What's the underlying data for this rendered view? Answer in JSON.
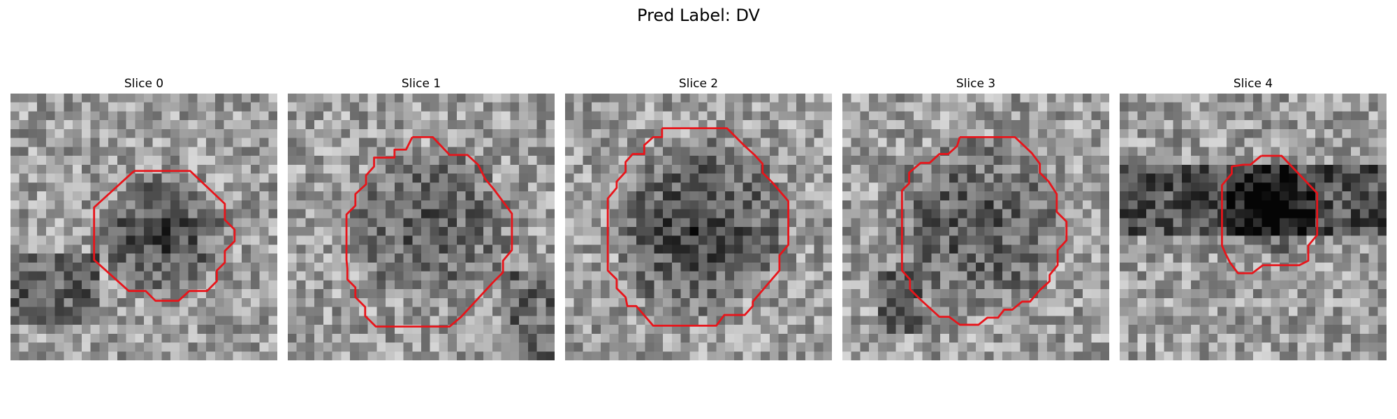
{
  "figure": {
    "title": "Pred Label: DV",
    "colors": {
      "contour": "#e8141a",
      "background": "#ffffff",
      "colormap": "gray"
    }
  },
  "slices": [
    {
      "title": "Slice 0",
      "contour": [
        [
          13.9,
          8.7
        ],
        [
          20.2,
          8.7
        ],
        [
          24.1,
          12.4
        ],
        [
          24.1,
          14.2
        ],
        [
          25.2,
          15.3
        ],
        [
          25.2,
          16.6
        ],
        [
          24.1,
          17.7
        ],
        [
          24.1,
          19.0
        ],
        [
          23.2,
          19.9
        ],
        [
          23.2,
          21.1
        ],
        [
          22.1,
          22.2
        ],
        [
          20.1,
          22.2
        ],
        [
          18.9,
          23.3
        ],
        [
          16.3,
          23.3
        ],
        [
          15.2,
          22.2
        ],
        [
          13.3,
          22.2
        ],
        [
          9.4,
          18.7
        ],
        [
          9.4,
          12.8
        ]
      ]
    },
    {
      "title": "Slice 1",
      "contour": [
        [
          14.0,
          4.9
        ],
        [
          16.3,
          4.9
        ],
        [
          18.2,
          6.9
        ],
        [
          20.2,
          6.9
        ],
        [
          21.4,
          8.0
        ],
        [
          22.2,
          9.6
        ],
        [
          23.2,
          10.8
        ],
        [
          25.2,
          13.5
        ],
        [
          25.2,
          17.6
        ],
        [
          24.2,
          18.8
        ],
        [
          24.2,
          20.1
        ],
        [
          23.1,
          21.2
        ],
        [
          19.5,
          25.1
        ],
        [
          18.2,
          26.2
        ],
        [
          9.9,
          26.2
        ],
        [
          8.7,
          25.0
        ],
        [
          8.7,
          24.0
        ],
        [
          7.6,
          22.9
        ],
        [
          7.6,
          21.8
        ],
        [
          6.7,
          20.9
        ],
        [
          6.7,
          19.7
        ],
        [
          6.6,
          18.7
        ],
        [
          6.6,
          13.6
        ],
        [
          7.6,
          12.6
        ],
        [
          7.6,
          11.3
        ],
        [
          8.8,
          10.2
        ],
        [
          8.8,
          9.2
        ],
        [
          9.7,
          8.2
        ],
        [
          9.7,
          7.2
        ],
        [
          12.0,
          7.2
        ],
        [
          12.0,
          6.3
        ],
        [
          13.3,
          6.3
        ]
      ]
    },
    {
      "title": "Slice 2",
      "contour": [
        [
          10.9,
          3.9
        ],
        [
          18.2,
          3.9
        ],
        [
          20.2,
          5.9
        ],
        [
          21.3,
          6.9
        ],
        [
          22.2,
          7.9
        ],
        [
          22.2,
          8.9
        ],
        [
          23.3,
          10.0
        ],
        [
          25.1,
          12.1
        ],
        [
          25.1,
          17.0
        ],
        [
          24.1,
          18.2
        ],
        [
          24.1,
          19.9
        ],
        [
          21.1,
          23.4
        ],
        [
          21.1,
          23.9
        ],
        [
          20.2,
          24.9
        ],
        [
          17.9,
          24.9
        ],
        [
          17.0,
          26.1
        ],
        [
          9.9,
          26.1
        ],
        [
          8.0,
          23.9
        ],
        [
          7.0,
          23.9
        ],
        [
          6.8,
          22.9
        ],
        [
          5.8,
          21.9
        ],
        [
          5.8,
          20.9
        ],
        [
          4.8,
          19.9
        ],
        [
          4.8,
          11.8
        ],
        [
          5.8,
          10.6
        ],
        [
          5.8,
          9.9
        ],
        [
          6.8,
          8.8
        ],
        [
          6.8,
          7.7
        ],
        [
          7.6,
          6.8
        ],
        [
          8.9,
          6.8
        ],
        [
          8.9,
          5.8
        ],
        [
          9.9,
          4.9
        ],
        [
          10.9,
          4.9
        ]
      ]
    },
    {
      "title": "Slice 3",
      "contour": [
        [
          13.2,
          4.9
        ],
        [
          19.4,
          4.9
        ],
        [
          21.3,
          6.7
        ],
        [
          22.2,
          7.9
        ],
        [
          22.2,
          8.9
        ],
        [
          23.2,
          9.9
        ],
        [
          24.1,
          11.3
        ],
        [
          24.1,
          13.3
        ],
        [
          25.2,
          14.4
        ],
        [
          25.2,
          16.5
        ],
        [
          24.2,
          17.6
        ],
        [
          24.2,
          19.3
        ],
        [
          23.3,
          20.4
        ],
        [
          23.3,
          21.1
        ],
        [
          22.2,
          22.1
        ],
        [
          21.1,
          23.4
        ],
        [
          20.2,
          23.4
        ],
        [
          19.1,
          24.3
        ],
        [
          18.2,
          24.3
        ],
        [
          17.5,
          25.2
        ],
        [
          16.3,
          25.2
        ],
        [
          15.3,
          26.0
        ],
        [
          13.2,
          26.0
        ],
        [
          12.0,
          25.1
        ],
        [
          10.9,
          25.1
        ],
        [
          8.7,
          23.1
        ],
        [
          7.6,
          22.0
        ],
        [
          7.6,
          20.9
        ],
        [
          6.7,
          19.9
        ],
        [
          6.7,
          10.9
        ],
        [
          7.5,
          10.1
        ],
        [
          7.5,
          8.9
        ],
        [
          8.8,
          7.8
        ],
        [
          9.8,
          7.8
        ],
        [
          10.9,
          6.8
        ],
        [
          11.9,
          6.8
        ],
        [
          12.9,
          5.9
        ]
      ]
    },
    {
      "title": "Slice 4",
      "contour": [
        [
          15.9,
          7.0
        ],
        [
          18.2,
          7.0
        ],
        [
          20.3,
          9.2
        ],
        [
          22.2,
          11.2
        ],
        [
          22.2,
          15.9
        ],
        [
          21.2,
          17.1
        ],
        [
          21.2,
          18.8
        ],
        [
          20.2,
          19.3
        ],
        [
          16.1,
          19.3
        ],
        [
          14.9,
          20.2
        ],
        [
          13.3,
          20.2
        ],
        [
          12.4,
          19.0
        ],
        [
          11.9,
          18.0
        ],
        [
          11.5,
          17.1
        ],
        [
          11.5,
          10.3
        ],
        [
          12.6,
          9.0
        ],
        [
          12.6,
          8.2
        ],
        [
          13.9,
          8.0
        ],
        [
          14.7,
          8.0
        ]
      ]
    }
  ]
}
